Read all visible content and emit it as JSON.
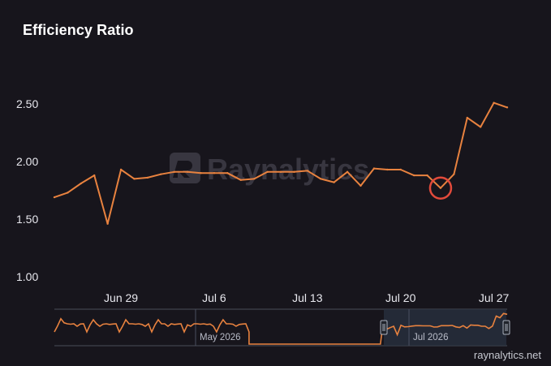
{
  "title": "Efficiency Ratio",
  "watermark": "Raynalytics",
  "credit": "raynalytics.net",
  "colors": {
    "background": "#17151c",
    "line": "#e8823f",
    "highlight": "#e24a3b",
    "navigator_mask": "#2a3240"
  },
  "chart_data": {
    "type": "line",
    "y_ticks": [
      "1.00",
      "1.50",
      "2.00",
      "2.50"
    ],
    "ylim": [
      1.0,
      2.55
    ],
    "x_tick_labels": [
      "Jun 29",
      "Jul 6",
      "Jul 13",
      "Jul 20",
      "Jul 27"
    ],
    "x_tick_dates": [
      "2026-06-29",
      "2026-07-06",
      "2026-07-13",
      "2026-07-20",
      "2026-07-27"
    ],
    "x_range": [
      "2026-06-24",
      "2026-07-28"
    ],
    "grid": false,
    "series": [
      {
        "x": [
          "2026-06-24",
          "2026-06-25",
          "2026-06-26",
          "2026-06-27",
          "2026-06-28",
          "2026-06-29",
          "2026-06-30",
          "2026-07-01",
          "2026-07-02",
          "2026-07-03",
          "2026-07-04",
          "2026-07-05",
          "2026-07-06",
          "2026-07-07",
          "2026-07-08",
          "2026-07-09",
          "2026-07-10",
          "2026-07-11",
          "2026-07-12",
          "2026-07-13",
          "2026-07-14",
          "2026-07-15",
          "2026-07-16",
          "2026-07-17",
          "2026-07-18",
          "2026-07-19",
          "2026-07-20",
          "2026-07-21",
          "2026-07-22",
          "2026-07-23",
          "2026-07-24",
          "2026-07-25",
          "2026-07-26",
          "2026-07-27",
          "2026-07-28"
        ],
        "y": [
          1.69,
          1.73,
          1.81,
          1.88,
          1.46,
          1.93,
          1.85,
          1.86,
          1.89,
          1.91,
          1.91,
          1.9,
          1.9,
          1.9,
          1.84,
          1.85,
          1.91,
          1.91,
          1.91,
          1.92,
          1.85,
          1.82,
          1.91,
          1.79,
          1.94,
          1.93,
          1.93,
          1.88,
          1.88,
          1.77,
          1.89,
          2.38,
          2.3,
          2.51,
          2.47
        ]
      }
    ],
    "highlight": {
      "x": "2026-07-23",
      "y": 1.77
    },
    "navigator": {
      "labels": [
        "May 2026",
        "Jul 2026"
      ],
      "selected_range": [
        "2026-06-24",
        "2026-07-28"
      ]
    }
  }
}
